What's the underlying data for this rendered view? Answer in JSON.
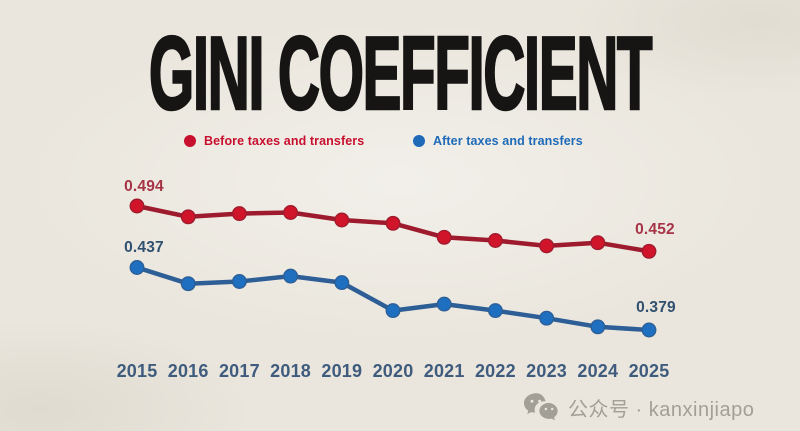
{
  "title": "GINI COEFFICIENT",
  "legend": [
    {
      "label": "Before taxes and transfers",
      "color": "#c8102e"
    },
    {
      "label": "After taxes and transfers",
      "color": "#1e6ab8"
    }
  ],
  "chart_data": {
    "type": "line",
    "title": "GINI COEFFICIENT",
    "xlabel": "",
    "ylabel": "",
    "grid": false,
    "legend_position": "top",
    "ylim": [
      0.36,
      0.52
    ],
    "categories": [
      "2015",
      "2016",
      "2017",
      "2018",
      "2019",
      "2020",
      "2021",
      "2022",
      "2023",
      "2024",
      "2025"
    ],
    "series": [
      {
        "name": "Before taxes and transfers",
        "values": [
          0.494,
          0.484,
          0.487,
          0.488,
          0.481,
          0.478,
          0.465,
          0.462,
          0.457,
          0.46,
          0.452
        ],
        "line_color": "#9e1b2e",
        "dot_color": "#d01429",
        "first_label": "0.494",
        "last_label": "0.452"
      },
      {
        "name": "After taxes and transfers",
        "values": [
          0.437,
          0.422,
          0.424,
          0.429,
          0.423,
          0.397,
          0.403,
          0.397,
          0.39,
          0.382,
          0.379
        ],
        "line_color": "#2d5e95",
        "dot_color": "#1e6fc0",
        "first_label": "0.437",
        "last_label": "0.379"
      }
    ]
  },
  "x_axis": {
    "label_color": "#3f5c7e"
  },
  "watermark": {
    "icon": "wechat-icon",
    "text": "公众号 · kanxinjiapo",
    "color": "#a29f97"
  },
  "colors": {
    "background": "#eae6dd",
    "title": "#161514"
  }
}
